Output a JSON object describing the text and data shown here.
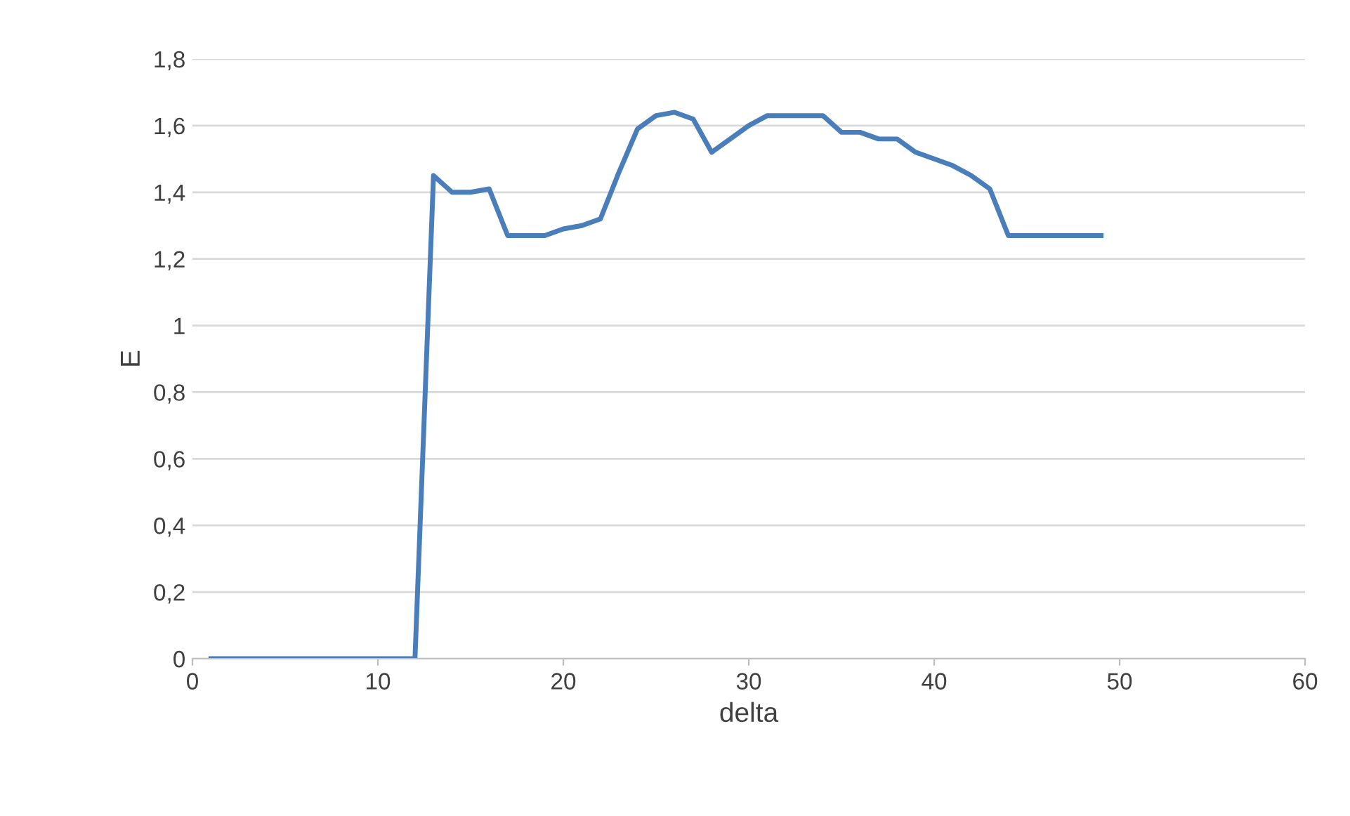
{
  "chart_data": {
    "type": "line",
    "xlabel": "delta",
    "ylabel": "E",
    "x": [
      1,
      2,
      3,
      4,
      5,
      6,
      7,
      8,
      9,
      10,
      11,
      12,
      13,
      14,
      15,
      16,
      17,
      18,
      19,
      20,
      21,
      22,
      23,
      24,
      25,
      26,
      27,
      28,
      29,
      30,
      31,
      32,
      33,
      34,
      35,
      36,
      37,
      38,
      39,
      40,
      41,
      42,
      43,
      44,
      45,
      46,
      47,
      48,
      49
    ],
    "series": [
      {
        "color": "#4a7ebb",
        "values": [
          0,
          0,
          0,
          0,
          0,
          0,
          0,
          0,
          0,
          0,
          0,
          0,
          1.45,
          1.4,
          1.4,
          1.41,
          1.27,
          1.27,
          1.27,
          1.29,
          1.3,
          1.32,
          1.46,
          1.59,
          1.63,
          1.64,
          1.62,
          1.52,
          1.56,
          1.6,
          1.63,
          1.63,
          1.63,
          1.63,
          1.58,
          1.58,
          1.56,
          1.56,
          1.52,
          1.5,
          1.48,
          1.45,
          1.41,
          1.27,
          1.27,
          1.27,
          1.27,
          1.27,
          1.27
        ]
      }
    ],
    "xlim": [
      0,
      60
    ],
    "xticks": [
      0,
      10,
      20,
      30,
      40,
      50,
      60
    ],
    "ylim": [
      0,
      1.8
    ],
    "yticks": [
      0,
      {
        "value": 0.2,
        "label": "0,2"
      },
      {
        "value": 0.4,
        "label": "0,4"
      },
      {
        "value": 0.6,
        "label": "0,6"
      },
      {
        "value": 0.8,
        "label": "0,8"
      },
      1,
      {
        "value": 1.2,
        "label": "1,2"
      },
      {
        "value": 1.4,
        "label": "1,4"
      },
      {
        "value": 1.6,
        "label": "1,6"
      },
      {
        "value": 1.8,
        "label": "1,8"
      }
    ],
    "grid": "y",
    "marker": "none",
    "line_style": "solid",
    "legend": false
  }
}
